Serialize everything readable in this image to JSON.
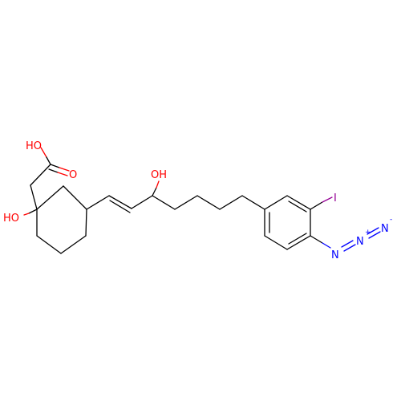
{
  "colors": {
    "carbon": "#000000",
    "oxygen": "#ff0000",
    "nitrogen": "#0000ff",
    "iodine": "#940094",
    "background": "#ffffff"
  },
  "atoms": {
    "acid_oh": "HO",
    "acid_o": "O",
    "ring_oh": "HO",
    "chain_oh": "OH",
    "iodine": "I",
    "azide_n1": "N",
    "azide_n2": "N",
    "azide_n3": "N",
    "azide_plus": "+",
    "azide_minus": "-"
  }
}
